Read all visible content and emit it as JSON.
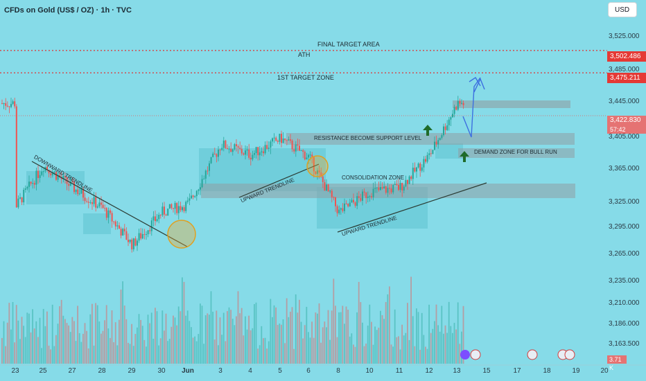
{
  "header": {
    "title": "CFDs on Gold (US$ / OZ) · 1h · TVC",
    "currency_button": "USD"
  },
  "price_axis": {
    "ticks": [
      "3,525.000",
      "3,485.000",
      "3,445.000",
      "3,405.000",
      "3,365.000",
      "3,325.000",
      "3,295.000",
      "3,265.000",
      "3,235.000",
      "3,210.000",
      "3,186.000",
      "3,163.500"
    ],
    "ath_tag": "3,502.486",
    "target_tag": "3,475.211",
    "last_price_tag": "3,422.830",
    "countdown": "57:42",
    "volume_tag": "3.71 K"
  },
  "time_axis": {
    "labels": [
      "23",
      "25",
      "27",
      "28",
      "29",
      "30",
      "Jun",
      "3",
      "4",
      "5",
      "6",
      "8",
      "10",
      "11",
      "12",
      "13",
      "15",
      "17",
      "18",
      "19",
      "20"
    ]
  },
  "annotations": {
    "final_target": "FINAL TARGET AREA",
    "ath": "ATH",
    "first_target": "1ST TARGET ZONE",
    "resistance_support": "RESISTANCE BECOME SUPPORT LEVEL",
    "demand_zone": "DEMAND ZONE FOR BULL RUN",
    "consolidation": "CONSOLIDATION ZONE",
    "downward_trendline": "DOWNWARD TRENDLINE",
    "upward_trendline_1": "UPWARD TRENDLINE",
    "upward_trendline_2": "UPWARD TRENDLINE"
  },
  "colors": {
    "background": "#86dbe8",
    "bull": "#26a69a",
    "bear": "#ef5350",
    "ath_line": "#e03030",
    "zone": "#8f9ea4",
    "projection": "#3c6fe0",
    "arrow": "#1f6b2a"
  },
  "chart_data": {
    "type": "candlestick",
    "symbol": "CFDs on Gold (US$ / OZ)",
    "interval": "1h",
    "last_price": 3422.83,
    "ath": 3502.486,
    "first_target": 3475.211,
    "ylim": [
      3150,
      3545
    ],
    "path_anchors": [
      {
        "x": "23",
        "price": 3312
      },
      {
        "x": "25",
        "price": 3362
      },
      {
        "x": "27",
        "price": 3335
      },
      {
        "x": "28",
        "price": 3310
      },
      {
        "x": "29",
        "price": 3265
      },
      {
        "x": "30",
        "price": 3305
      },
      {
        "x": "Jun",
        "price": 3315
      },
      {
        "x": "3",
        "price": 3388
      },
      {
        "x": "4",
        "price": 3375
      },
      {
        "x": "5",
        "price": 3395
      },
      {
        "x": "6",
        "price": 3372
      },
      {
        "x": "8",
        "price": 3305
      },
      {
        "x": "10",
        "price": 3330
      },
      {
        "x": "11",
        "price": 3335
      },
      {
        "x": "12",
        "price": 3375
      },
      {
        "x": "13",
        "price": 3438
      }
    ]
  }
}
